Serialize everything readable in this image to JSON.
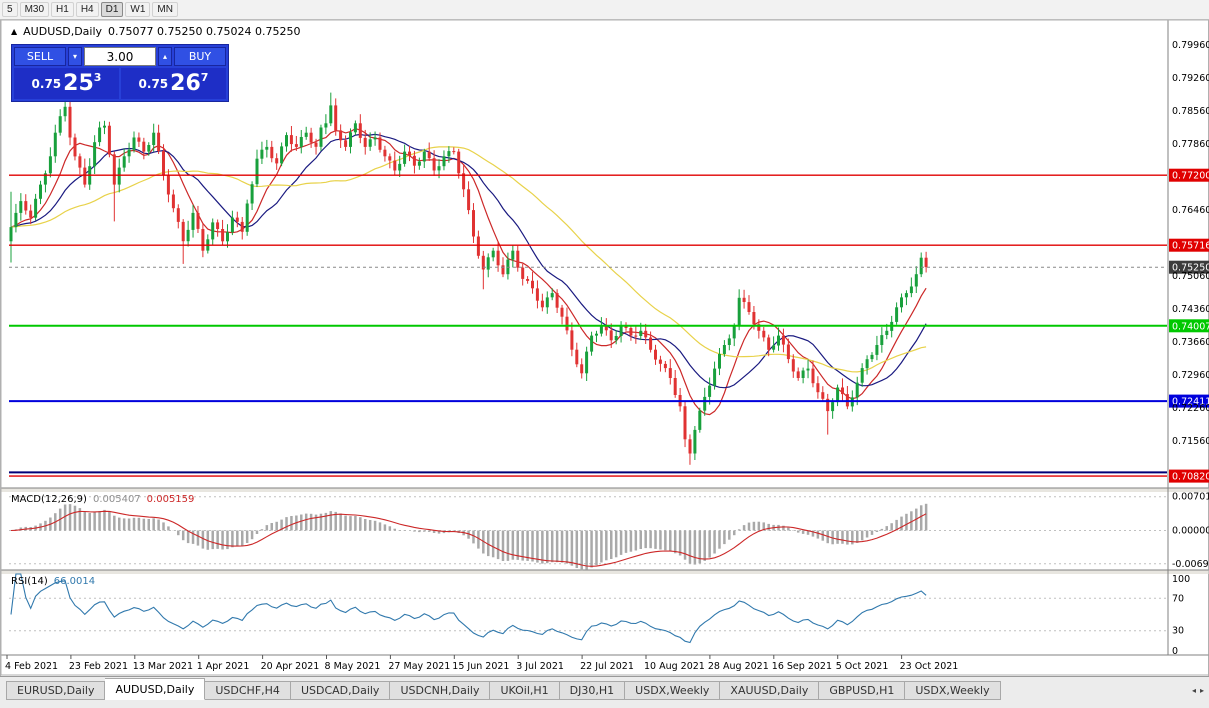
{
  "toolbar": {
    "timeframes": [
      {
        "label": "5",
        "active": false
      },
      {
        "label": "M30",
        "active": false
      },
      {
        "label": "H1",
        "active": false
      },
      {
        "label": "H4",
        "active": false
      },
      {
        "label": "D1",
        "active": true
      },
      {
        "label": "W1",
        "active": false
      },
      {
        "label": "MN",
        "active": false
      }
    ]
  },
  "icons": {
    "chart_icon": "▲",
    "spin_up": "▴",
    "spin_down": "▾",
    "tab_left": "◂",
    "tab_right": "▸"
  },
  "colors": {
    "up": "#18a03c",
    "down": "#e03232",
    "hist": "#a9a9a9",
    "signal": "#cc2828",
    "rsi": "#3179ad",
    "axis_text": "#000000",
    "frame": "#808080",
    "grid_dash": "#c0c0c0"
  },
  "chart": {
    "title": "AUDUSD,Daily",
    "ohlc_text": "0.75077 0.75250 0.75024 0.75250",
    "trade_panel": {
      "sell_label": "SELL",
      "buy_label": "BUY",
      "volume": "3.00",
      "sell_price": {
        "prefix": "0.75",
        "big": "25",
        "sup": "3"
      },
      "buy_price": {
        "prefix": "0.75",
        "big": "26",
        "sup": "7"
      }
    },
    "axis_labels": [
      "0.79960",
      "0.79260",
      "0.78560",
      "0.77860",
      "0.76460",
      "0.75060",
      "0.74360",
      "0.73660",
      "0.72960",
      "0.72260",
      "0.71560"
    ],
    "levels": [
      {
        "price": 0.772,
        "label": "0.77200",
        "color": "#e00000",
        "width": 1.4
      },
      {
        "price": 0.75716,
        "label": "0.75716",
        "color": "#e00000",
        "width": 1.4
      },
      {
        "price": 0.74007,
        "label": "0.74007",
        "color": "#00c800",
        "width": 2
      },
      {
        "price": 0.72411,
        "label": "0.72411",
        "color": "#0000dc",
        "width": 2
      },
      {
        "price": 0.709,
        "label": "",
        "color": "#000078",
        "width": 2
      },
      {
        "price": 0.7082,
        "label": "0.70820",
        "color": "#e00000",
        "width": 1.4
      }
    ],
    "current_price": {
      "price": 0.7525,
      "label": "0.75250",
      "badge": "#3c3c3c"
    },
    "dates": [
      "4 Feb 2021",
      "23 Feb 2021",
      "13 Mar 2021",
      "1 Apr 2021",
      "20 Apr 2021",
      "8 May 2021",
      "27 May 2021",
      "15 Jun 2021",
      "3 Jul 2021",
      "22 Jul 2021",
      "10 Aug 2021",
      "28 Aug 2021",
      "16 Sep 2021",
      "5 Oct 2021",
      "23 Oct 2021"
    ],
    "moving_averages": [
      {
        "period": 8,
        "color": "#cc2828"
      },
      {
        "period": 16,
        "color": "#1a1a80"
      },
      {
        "period": 38,
        "color": "#e8d24a"
      }
    ],
    "candles": {
      "first_open": 0.758,
      "closes": [
        0.761,
        0.764,
        0.7665,
        0.7645,
        0.763,
        0.767,
        0.77,
        0.7724,
        0.776,
        0.781,
        0.7845,
        0.7865,
        0.78,
        0.776,
        0.7736,
        0.77,
        0.7739,
        0.779,
        0.7821,
        0.7825,
        0.7764,
        0.77,
        0.7736,
        0.776,
        0.7774,
        0.78,
        0.7791,
        0.777,
        0.7784,
        0.781,
        0.7771,
        0.772,
        0.7679,
        0.765,
        0.7621,
        0.758,
        0.7604,
        0.764,
        0.7606,
        0.756,
        0.7584,
        0.762,
        0.7606,
        0.758,
        0.7599,
        0.763,
        0.7621,
        0.76,
        0.766,
        0.7701,
        0.7755,
        0.7774,
        0.778,
        0.7756,
        0.7745,
        0.7781,
        0.7805,
        0.7786,
        0.778,
        0.7801,
        0.781,
        0.7789,
        0.778,
        0.7821,
        0.783,
        0.7868,
        0.7815,
        0.7794,
        0.778,
        0.7811,
        0.783,
        0.7799,
        0.778,
        0.7796,
        0.78,
        0.7774,
        0.776,
        0.7751,
        0.773,
        0.7744,
        0.777,
        0.7761,
        0.774,
        0.7749,
        0.777,
        0.7756,
        0.773,
        0.7739,
        0.776,
        0.7771,
        0.777,
        0.7724,
        0.769,
        0.7646,
        0.759,
        0.7549,
        0.752,
        0.7546,
        0.756,
        0.7529,
        0.751,
        0.7541,
        0.756,
        0.7524,
        0.75,
        0.7496,
        0.748,
        0.7454,
        0.744,
        0.7461,
        0.747,
        0.7439,
        0.742,
        0.7391,
        0.735,
        0.7319,
        0.73,
        0.7346,
        0.738,
        0.7384,
        0.74,
        0.7391,
        0.737,
        0.7379,
        0.74,
        0.7396,
        0.738,
        0.7379,
        0.739,
        0.7376,
        0.735,
        0.7329,
        0.732,
        0.7311,
        0.729,
        0.7254,
        0.723,
        0.716,
        0.713,
        0.718,
        0.7221,
        0.725,
        0.7274,
        0.731,
        0.7341,
        0.736,
        0.7374,
        0.74,
        0.746,
        0.7451,
        0.743,
        0.7404,
        0.739,
        0.7376,
        0.735,
        0.7359,
        0.738,
        0.7361,
        0.733,
        0.7304,
        0.729,
        0.7306,
        0.731,
        0.7279,
        0.726,
        0.7246,
        0.722,
        0.7239,
        0.727,
        0.7256,
        0.723,
        0.7249,
        0.728,
        0.7311,
        0.733,
        0.7339,
        0.736,
        0.7381,
        0.739,
        0.7409,
        0.744,
        0.7461,
        0.747,
        0.7484,
        0.751,
        0.7545,
        0.7525
      ],
      "overrides": {
        "0": {
          "h": 0.7685,
          "l": 0.7535
        },
        "11": {
          "h": 0.788
        },
        "21": {
          "l": 0.7622
        },
        "35": {
          "l": 0.7532
        },
        "65": {
          "h": 0.7895
        },
        "96": {
          "l": 0.7478
        },
        "116": {
          "l": 0.7289
        },
        "138": {
          "l": 0.7106
        },
        "148": {
          "h": 0.7478
        },
        "166": {
          "l": 0.717
        },
        "185": {
          "h": 0.7556
        }
      }
    }
  },
  "macd": {
    "label": "MACD(12,26,9)",
    "main_value": "0.005407",
    "signal_value": "0.005159",
    "axis": [
      {
        "label": "0.007015",
        "value": 0.007015
      },
      {
        "label": "0.00000",
        "value": 0
      },
      {
        "label": "-0.006925",
        "value": -0.006925
      }
    ],
    "range": 0.008
  },
  "rsi": {
    "label": "RSI(14)",
    "value": "66.0014",
    "axis": [
      {
        "label": "100",
        "value": 100
      },
      {
        "label": "70",
        "value": 70
      },
      {
        "label": "30",
        "value": 30
      },
      {
        "label": "0",
        "value": 0
      }
    ],
    "levels": [
      70,
      30
    ]
  },
  "tabs": {
    "items": [
      {
        "label": "EURUSD,Daily",
        "active": false
      },
      {
        "label": "AUDUSD,Daily",
        "active": true
      },
      {
        "label": "USDCHF,H4",
        "active": false
      },
      {
        "label": "USDCAD,Daily",
        "active": false
      },
      {
        "label": "USDCNH,Daily",
        "active": false
      },
      {
        "label": "UKOil,H1",
        "active": false
      },
      {
        "label": "DJ30,H1",
        "active": false
      },
      {
        "label": "USDX,Weekly",
        "active": false
      },
      {
        "label": "XAUUSD,Daily",
        "active": false
      },
      {
        "label": "GBPUSD,H1",
        "active": false
      },
      {
        "label": "USDX,Weekly",
        "active": false
      }
    ]
  }
}
